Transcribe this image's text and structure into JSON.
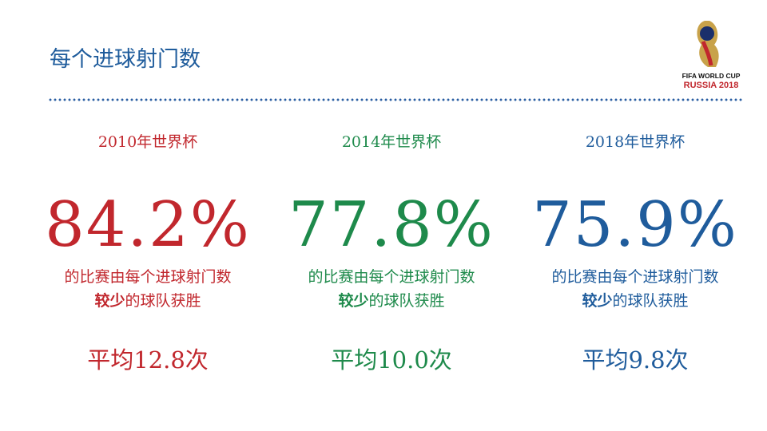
{
  "header": {
    "title": "每个进球射门数",
    "logo_line1": "FIFA WORLD CUP",
    "logo_line2": "RUSSIA 2018"
  },
  "columns": [
    {
      "year": "2010年世界杯",
      "percent": "84.2%",
      "desc_line1": "的比赛由每个进球射门数",
      "desc_bold": "较少",
      "desc_rest": "的球队获胜",
      "average": "平均12.8次",
      "color": "#c1272d"
    },
    {
      "year": "2014年世界杯",
      "percent": "77.8%",
      "desc_line1": "的比赛由每个进球射门数",
      "desc_bold": "较少",
      "desc_rest": "的球队获胜",
      "average": "平均10.0次",
      "color": "#1e8a4b"
    },
    {
      "year": "2018年世界杯",
      "percent": "75.9%",
      "desc_line1": "的比赛由每个进球射门数",
      "desc_bold": "较少",
      "desc_rest": "的球队获胜",
      "average": "平均9.8次",
      "color": "#1f5c9c"
    }
  ]
}
